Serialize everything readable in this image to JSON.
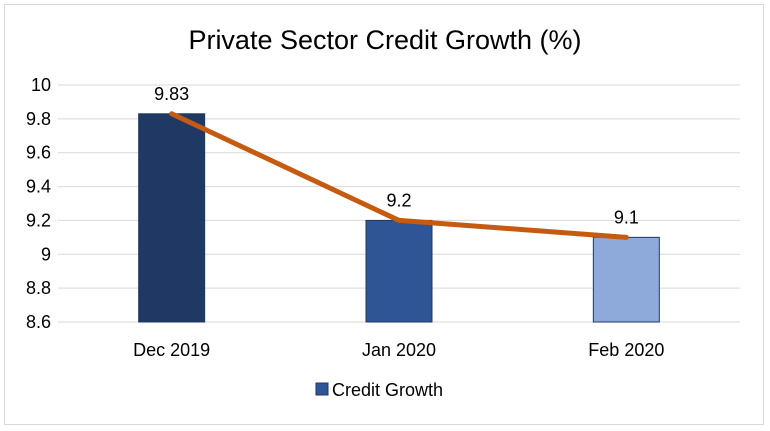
{
  "chart_data": {
    "type": "bar",
    "title": "Private Sector Credit Growth (%)",
    "categories": [
      "Dec 2019",
      "Jan 2020",
      "Feb 2020"
    ],
    "series": [
      {
        "name": "Credit Growth",
        "values": [
          9.83,
          9.2,
          9.1
        ],
        "data_labels": [
          "9.83",
          "9.2",
          "9.1"
        ],
        "bar_colors": [
          "#1f3864",
          "#2f5597",
          "#8eaadb"
        ],
        "legend_color": "#2f5597"
      }
    ],
    "trend_line": {
      "values": [
        9.83,
        9.2,
        9.1
      ],
      "color": "#c55a11"
    },
    "y_ticks": [
      "10",
      "9.8",
      "9.6",
      "9.4",
      "9.2",
      "9",
      "8.8",
      "8.6"
    ],
    "ylim": [
      8.6,
      10
    ],
    "grid": true,
    "legend_position": "bottom",
    "xlabel": "",
    "ylabel": ""
  }
}
